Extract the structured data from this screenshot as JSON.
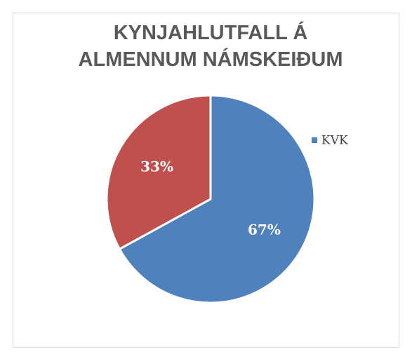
{
  "chart_data": {
    "type": "pie",
    "title": "KYNJAHLUTFALL Á ALMENNUM NÁMSKEIÐUM",
    "categories": [
      "KVK",
      null
    ],
    "values": [
      67,
      33
    ],
    "value_labels": [
      "67%",
      "33%"
    ],
    "colors": [
      "#4f81bd",
      "#c0504d"
    ],
    "legend": "right"
  }
}
